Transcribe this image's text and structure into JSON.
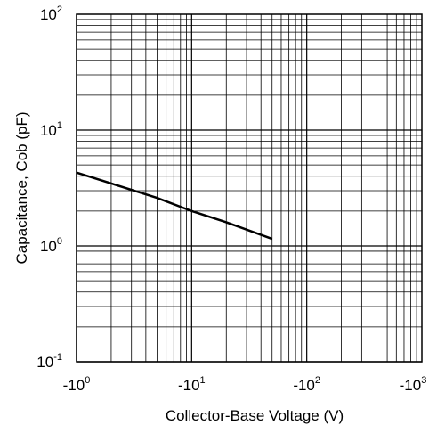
{
  "chart_data": {
    "type": "line",
    "xlabel": "Collector-Base Voltage (V)",
    "ylabel": "Capacitance, Cob (pF)",
    "xscale": "log",
    "yscale": "log",
    "xlim": [
      -1,
      -1000
    ],
    "ylim": [
      0.1,
      100
    ],
    "grid": true,
    "x_ticks": [
      {
        "value": -1,
        "label_base": "-10",
        "label_exp": "0"
      },
      {
        "value": -10,
        "label_base": "-10",
        "label_exp": "1"
      },
      {
        "value": -100,
        "label_base": "-10",
        "label_exp": "2"
      },
      {
        "value": -1000,
        "label_base": "-10",
        "label_exp": "3"
      }
    ],
    "y_ticks": [
      {
        "value": 0.1,
        "label_base": "10",
        "label_exp": "-1"
      },
      {
        "value": 1,
        "label_base": "10",
        "label_exp": "0"
      },
      {
        "value": 10,
        "label_base": "10",
        "label_exp": "1"
      },
      {
        "value": 100,
        "label_base": "10",
        "label_exp": "2"
      }
    ],
    "series": [
      {
        "x": [
          -1,
          -5,
          -10,
          -20,
          -50
        ],
        "y": [
          4.3,
          2.6,
          2.0,
          1.6,
          1.15
        ],
        "color": "#000000"
      }
    ]
  }
}
